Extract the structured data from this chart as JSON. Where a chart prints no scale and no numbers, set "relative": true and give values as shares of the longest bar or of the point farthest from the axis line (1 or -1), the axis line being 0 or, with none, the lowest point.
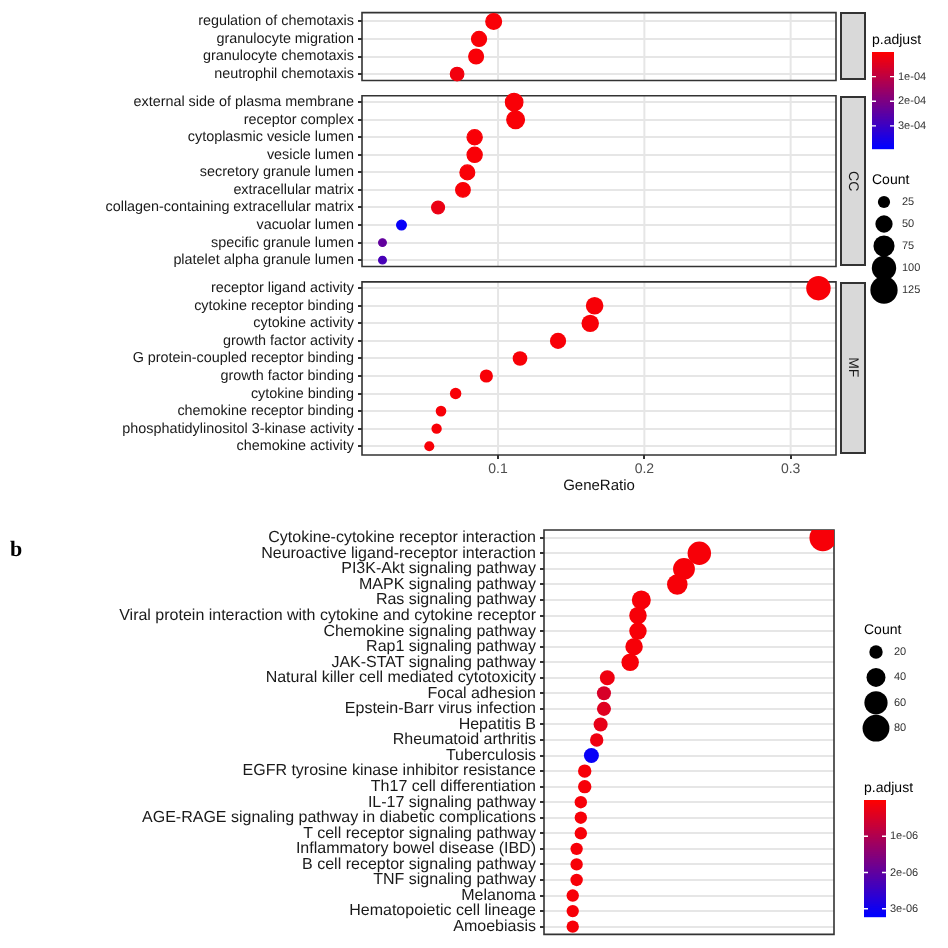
{
  "chart_data": [
    {
      "type": "bubble",
      "orientation": "horizontal",
      "marker": "circle",
      "grid": true,
      "xlabel": "GeneRatio",
      "xlim": [
        0.007,
        0.331
      ],
      "xticks": [
        0.1,
        0.2,
        0.3
      ],
      "clim": [
        0,
        0.00039
      ],
      "clabel": "p.adjust",
      "cticks": [
        {
          "value": 0.0001,
          "label": "1e-04"
        },
        {
          "value": 0.0002,
          "label": "2e-04"
        },
        {
          "value": 0.0003,
          "label": "3e-04"
        }
      ],
      "legend_title": "Count",
      "size_legend": [
        25,
        50,
        75,
        100,
        125
      ],
      "categories": [
        "regulation of chemotaxis",
        "granulocyte migration",
        "granulocyte chemotaxis",
        "neutrophil chemotaxis",
        "external side of plasma membrane",
        "receptor complex",
        "cytoplasmic vesicle lumen",
        "vesicle lumen",
        "secretory granule lumen",
        "extracellular matrix",
        "collagen-containing extracellular matrix",
        "vacuolar lumen",
        "specific granule lumen",
        "platelet alpha granule lumen",
        "receptor ligand activity",
        "cytokine receptor binding",
        "cytokine activity",
        "growth factor activity",
        "G protein-coupled receptor binding",
        "growth factor binding",
        "cytokine binding",
        "chemokine receptor binding",
        "phosphatidylinositol 3-kinase activity",
        "chemokine activity"
      ],
      "series": [
        {
          "values": [
            0.097,
            0.087,
            0.085,
            0.072,
            null,
            null,
            null,
            null,
            null,
            null,
            null,
            null,
            null,
            null,
            null,
            null,
            null,
            null,
            null,
            null,
            null,
            null,
            null,
            null
          ],
          "sizes": [
            42,
            38,
            37,
            31,
            null,
            null,
            null,
            null,
            null,
            null,
            null,
            null,
            null,
            null,
            null,
            null,
            null,
            null,
            null,
            null,
            null,
            null,
            null,
            null
          ],
          "colors": [
            "#f90007",
            "#f90007",
            "#f90007",
            "#f2000d",
            null,
            null,
            null,
            null,
            null,
            null,
            null,
            null,
            null,
            null,
            null,
            null,
            null,
            null,
            null,
            null,
            null,
            null,
            null,
            null
          ],
          "cvalues": [
            1e-05,
            1e-05,
            1e-05,
            2e-05,
            null,
            null,
            null,
            null,
            null,
            null,
            null,
            null,
            null,
            null,
            null,
            null,
            null,
            null,
            null,
            null,
            null,
            null,
            null,
            null
          ]
        },
        {
          "name": "CC",
          "values": [
            null,
            null,
            null,
            null,
            0.111,
            0.112,
            0.084,
            0.084,
            0.079,
            0.076,
            0.059,
            0.034,
            0.021,
            0.021,
            null,
            null,
            null,
            null,
            null,
            null,
            null,
            null,
            null,
            null
          ],
          "sizes": [
            null,
            null,
            null,
            null,
            52,
            53,
            39,
            39,
            37,
            36,
            28,
            16,
            10,
            10,
            null,
            null,
            null,
            null,
            null,
            null,
            null,
            null,
            null,
            null
          ],
          "colors": [
            null,
            null,
            null,
            null,
            "#f90007",
            "#f90007",
            "#f90007",
            "#f90007",
            "#f90007",
            "#f90007",
            "#eb0014",
            "#0700f8",
            "#62009d",
            "#4800b7",
            null,
            null,
            null,
            null,
            null,
            null,
            null,
            null,
            null,
            null
          ],
          "cvalues": [
            null,
            null,
            null,
            null,
            1e-05,
            1e-05,
            1e-05,
            1e-05,
            1e-05,
            1e-05,
            3e-05,
            0.00038,
            0.00024,
            0.00028,
            null,
            null,
            null,
            null,
            null,
            null,
            null,
            null,
            null,
            null
          ]
        },
        {
          "name": "MF",
          "values": [
            null,
            null,
            null,
            null,
            null,
            null,
            null,
            null,
            null,
            null,
            null,
            null,
            null,
            null,
            0.319,
            0.166,
            0.163,
            0.141,
            0.115,
            0.092,
            0.071,
            0.061,
            0.058,
            0.053
          ],
          "sizes": [
            null,
            null,
            null,
            null,
            null,
            null,
            null,
            null,
            null,
            null,
            null,
            null,
            null,
            null,
            100,
            52,
            51,
            44,
            36,
            29,
            22,
            19,
            18,
            17
          ],
          "cvalues": [
            null,
            null,
            null,
            null,
            null,
            null,
            null,
            null,
            null,
            null,
            null,
            null,
            null,
            null,
            1e-05,
            1e-05,
            1e-05,
            1e-05,
            1e-05,
            1e-05,
            1e-05,
            1e-05,
            1e-05,
            1e-05
          ]
        }
      ]
    },
    {
      "type": "bubble",
      "orientation": "horizontal",
      "marker": "circle",
      "grid": "y",
      "relative": true,
      "title": "b",
      "clim": [
        0,
        3.2e-06
      ],
      "legend_title": "Count",
      "size_legend": [
        20,
        40,
        60,
        80
      ],
      "clabel": "p.adjust",
      "cticks": [
        {
          "value": 1e-06,
          "label": "1e-06"
        },
        {
          "value": 2e-06,
          "label": "2e-06"
        },
        {
          "value": 3e-06,
          "label": "3e-06"
        }
      ],
      "categories": [
        "Cytokine-cytokine receptor interaction",
        "Neuroactive ligand-receptor interaction",
        "PI3K-Akt signaling pathway",
        "MAPK signaling pathway",
        "Ras signaling pathway",
        "Viral protein interaction with cytokine and cytokine receptor",
        "Chemokine signaling pathway",
        "Rap1 signaling pathway",
        "JAK-STAT signaling pathway",
        "Natural killer cell mediated cytotoxicity",
        "Focal adhesion",
        "Epstein-Barr virus infection",
        "Hepatitis B",
        "Rheumatoid arthritis",
        "Tuberculosis",
        "EGFR tyrosine kinase inhibitor resistance",
        "Th17 cell differentiation",
        "IL-17 signaling pathway",
        "AGE-RAGE signaling pathway in diabetic complications",
        "T cell receptor signaling pathway",
        "Inflammatory bowel disease (IBD)",
        "B cell receptor signaling pathway",
        "TNF signaling pathway",
        "Melanoma",
        "Hematopoietic cell lineage",
        "Amoebiasis"
      ],
      "values": [
        1,
        0.557,
        0.502,
        0.478,
        0.349,
        0.337,
        0.337,
        0.323,
        0.309,
        0.227,
        0.215,
        0.215,
        0.203,
        0.189,
        0.17,
        0.146,
        0.146,
        0.132,
        0.132,
        0.132,
        0.117,
        0.117,
        0.117,
        0.103,
        0.103,
        0.103
      ],
      "sizes": [
        80,
        61,
        53,
        47,
        40,
        34,
        34,
        34,
        34,
        25,
        22,
        22,
        22,
        20,
        25,
        20,
        20,
        17,
        17,
        17,
        17,
        17,
        17,
        17,
        17,
        17
      ],
      "cvalues": [
        1e-07,
        1e-07,
        1e-07,
        1e-07,
        1e-07,
        1e-07,
        1e-07,
        1e-07,
        1e-07,
        2e-07,
        5e-07,
        4e-07,
        3e-07,
        2e-07,
        3.1e-06,
        1e-07,
        1e-07,
        1e-07,
        1e-07,
        1e-07,
        1e-07,
        1e-07,
        1e-07,
        1e-07,
        1e-07,
        1e-07
      ]
    }
  ]
}
